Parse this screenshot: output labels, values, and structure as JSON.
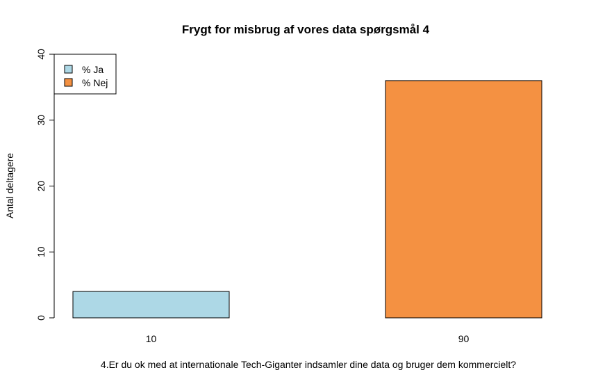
{
  "chart_data": {
    "type": "bar",
    "title": "Frygt for misbrug af vores data spørgsmål 4",
    "xlabel": "4.Er du ok med at internationale Tech-Giganter indsamler dine data og bruger dem kommercielt?",
    "ylabel": "Antal deltagere",
    "categories": [
      "10",
      "90"
    ],
    "values": [
      4,
      36
    ],
    "colors": [
      "#add8e6",
      "#f49142"
    ],
    "ylim": [
      0,
      40
    ],
    "yticks": [
      0,
      10,
      20,
      30,
      40
    ],
    "grid": false,
    "legend": {
      "placement": "top-left",
      "entries": [
        {
          "label": "% Ja",
          "color": "#add8e6"
        },
        {
          "label": "% Nej",
          "color": "#f49142"
        }
      ]
    }
  }
}
